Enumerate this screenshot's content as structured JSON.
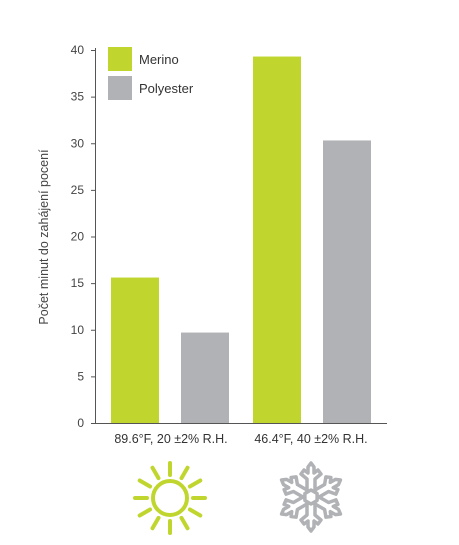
{
  "chart_data": {
    "type": "bar",
    "categories": [
      "89.6°F, 20 ±2% R.H.",
      "46.4°F, 40 ±2% R.H."
    ],
    "series": [
      {
        "name": "Merino",
        "values": [
          15.6,
          39.3
        ],
        "color": "#c0d62f"
      },
      {
        "name": "Polyester",
        "values": [
          9.7,
          30.3
        ],
        "color": "#b1b2b5"
      }
    ],
    "title": "",
    "xlabel": "",
    "ylabel": "Počet minut do zahájení pocení",
    "ylim": [
      0,
      40
    ],
    "yticks": [
      0,
      5,
      10,
      15,
      20,
      25,
      30,
      35,
      40
    ],
    "grid": false,
    "legend": "top-left",
    "icons": [
      "sun-icon",
      "snowflake-icon"
    ],
    "icon_colors": [
      "#c0d62f",
      "#b1b2b5"
    ]
  }
}
